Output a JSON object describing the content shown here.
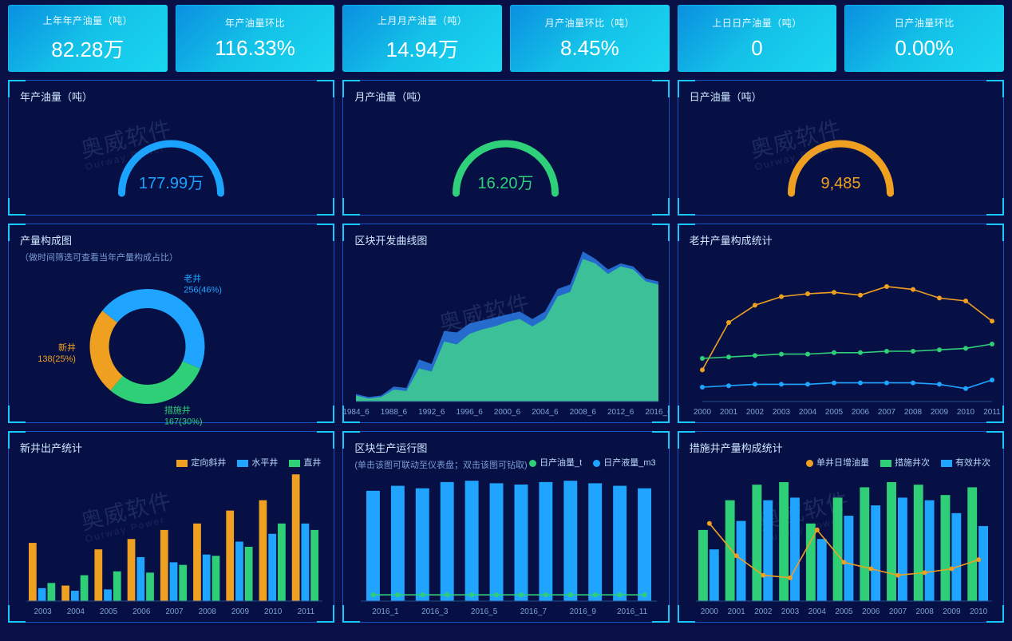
{
  "colors": {
    "bg": "#081045",
    "panel_border": "#1254c1",
    "corner": "#18c8ff",
    "kpi_grad_from": "#0a8fe0",
    "kpi_grad_to": "#1ad6f0",
    "axis_text": "#7ea2d6"
  },
  "watermark": {
    "main": "奥威软件",
    "sub": "Ourway Power"
  },
  "kpi": [
    {
      "label": "上年年产油量（吨）",
      "value": "82.28万"
    },
    {
      "label": "年产油量环比",
      "value": "116.33%"
    },
    {
      "label": "上月月产油量（吨）",
      "value": "14.94万"
    },
    {
      "label": "月产油量环比（吨）",
      "value": "8.45%"
    },
    {
      "label": "上日日产油量（吨）",
      "value": "0"
    },
    {
      "label": "日产油量环比",
      "value": "0.00%"
    }
  ],
  "gauges": [
    {
      "title": "年产油量（吨）",
      "value": "177.99万",
      "angle": 200,
      "color": "#1aa3ff",
      "track": "#1b3a78"
    },
    {
      "title": "月产油量（吨）",
      "value": "16.20万",
      "angle": 190,
      "color": "#2fd07a",
      "track": "#1b3a78"
    },
    {
      "title": "日产油量（吨）",
      "value": "9,485",
      "angle": 195,
      "color": "#f0a020",
      "track": "#1b3a78"
    }
  ],
  "donut": {
    "title": "产量构成图",
    "sub": "（做时间筛选可查看当年产量构成占比）",
    "center_color": "#081045",
    "slices": [
      {
        "name": "old",
        "label": "老井",
        "value": 256,
        "pct": "46%",
        "color": "#1fa4ff",
        "label_color": "#1fa4ff"
      },
      {
        "name": "op",
        "label": "措施井",
        "value": 167,
        "pct": "30%",
        "color": "#2fcf77",
        "label_color": "#2fcf77"
      },
      {
        "name": "new",
        "label": "新井",
        "value": 138,
        "pct": "25%",
        "color": "#f0a020",
        "label_color": "#f0a020"
      }
    ]
  },
  "area": {
    "title": "区块开发曲线图",
    "x_labels": [
      "1984_6",
      "1988_6",
      "1992_6",
      "1996_6",
      "2000_6",
      "2004_6",
      "2008_6",
      "2012_6",
      "2016_6"
    ],
    "series": [
      {
        "name": "s1",
        "color": "#2c7be5",
        "fill": "#2c7be5",
        "opacity": 0.85,
        "y": [
          5,
          3,
          4,
          10,
          9,
          28,
          25,
          47,
          46,
          52,
          54,
          56,
          58,
          60,
          55,
          60,
          75,
          78,
          100,
          95,
          88,
          92,
          90,
          82,
          80
        ]
      },
      {
        "name": "s2",
        "color": "#3fcf8e",
        "fill": "#3fcf8e",
        "opacity": 0.85,
        "y": [
          4,
          2,
          3,
          8,
          7,
          22,
          20,
          40,
          38,
          45,
          48,
          50,
          53,
          55,
          50,
          55,
          70,
          73,
          95,
          92,
          85,
          90,
          88,
          80,
          78
        ]
      }
    ],
    "ylim": [
      0,
      100
    ]
  },
  "line3": {
    "title": "老井产量构成统计",
    "x_labels": [
      "2000",
      "2001",
      "2002",
      "2003",
      "2004",
      "2005",
      "2006",
      "2007",
      "2008",
      "2009",
      "2010",
      "2011"
    ],
    "ylim": [
      0,
      100
    ],
    "series": [
      {
        "name": "a",
        "color": "#f0a020",
        "y": [
          22,
          55,
          67,
          73,
          75,
          76,
          74,
          80,
          78,
          72,
          70,
          56
        ]
      },
      {
        "name": "b",
        "color": "#2fcf77",
        "y": [
          30,
          31,
          32,
          33,
          33,
          34,
          34,
          35,
          35,
          36,
          37,
          40
        ]
      },
      {
        "name": "c",
        "color": "#1fa4ff",
        "y": [
          10,
          11,
          12,
          12,
          12,
          13,
          13,
          13,
          13,
          12,
          9,
          15
        ]
      }
    ]
  },
  "bars_left": {
    "title": "新井出产统计",
    "legend": [
      {
        "label": "定向斜井",
        "color": "#f0a020"
      },
      {
        "label": "水平井",
        "color": "#1fa4ff"
      },
      {
        "label": "直井",
        "color": "#2fcf77"
      }
    ],
    "x_labels": [
      "2003",
      "2004",
      "2005",
      "2006",
      "2007",
      "2008",
      "2009",
      "2010",
      "2011"
    ],
    "ylim": [
      0,
      100
    ],
    "bars": [
      {
        "color": "#f0a020",
        "y": [
          45,
          12,
          40,
          48,
          55,
          60,
          70,
          78,
          98
        ]
      },
      {
        "color": "#1fa4ff",
        "y": [
          10,
          8,
          9,
          34,
          30,
          36,
          46,
          52,
          60
        ]
      },
      {
        "color": "#2fcf77",
        "y": [
          14,
          20,
          23,
          22,
          28,
          35,
          42,
          60,
          55
        ]
      }
    ]
  },
  "bars_mid": {
    "title": "区块生产运行图",
    "sub": "(单击该图可联动至仪表盘；双击该图可钻取)",
    "legend": [
      {
        "label": "日产油量_t",
        "color": "#2fcf77"
      },
      {
        "label": "日产液量_m3",
        "color": "#1fa4ff"
      }
    ],
    "x_labels": [
      "2016_1",
      "2016_3",
      "2016_5",
      "2016_7",
      "2016_9",
      "2016_11"
    ],
    "ylim": [
      0,
      100
    ],
    "bars": [
      {
        "color": "#1fa4ff",
        "y": [
          88,
          92,
          90,
          95,
          96,
          94,
          93,
          95,
          96,
          94,
          92,
          90
        ]
      }
    ],
    "line": {
      "color": "#2fcf77",
      "y": [
        5,
        5,
        5,
        5,
        5,
        5,
        5,
        5,
        5,
        5,
        5,
        5
      ]
    }
  },
  "bars_right": {
    "title": "措施井产量构成统计",
    "legend": [
      {
        "label": "单井日增油量",
        "color": "#f0a020"
      },
      {
        "label": "措施井次",
        "color": "#2fcf77"
      },
      {
        "label": "有效井次",
        "color": "#1fa4ff"
      }
    ],
    "x_labels": [
      "2000",
      "2001",
      "2002",
      "2003",
      "2004",
      "2005",
      "2006",
      "2007",
      "2008",
      "2009",
      "2010"
    ],
    "ylim": [
      0,
      100
    ],
    "bars": [
      {
        "color": "#2fcf77",
        "y": [
          55,
          78,
          90,
          92,
          60,
          80,
          88,
          92,
          90,
          82,
          88
        ]
      },
      {
        "color": "#1fa4ff",
        "y": [
          40,
          62,
          78,
          80,
          48,
          66,
          74,
          80,
          78,
          68,
          58
        ]
      }
    ],
    "line": {
      "color": "#f0a020",
      "y": [
        60,
        35,
        20,
        18,
        55,
        30,
        25,
        20,
        22,
        25,
        32
      ]
    }
  }
}
